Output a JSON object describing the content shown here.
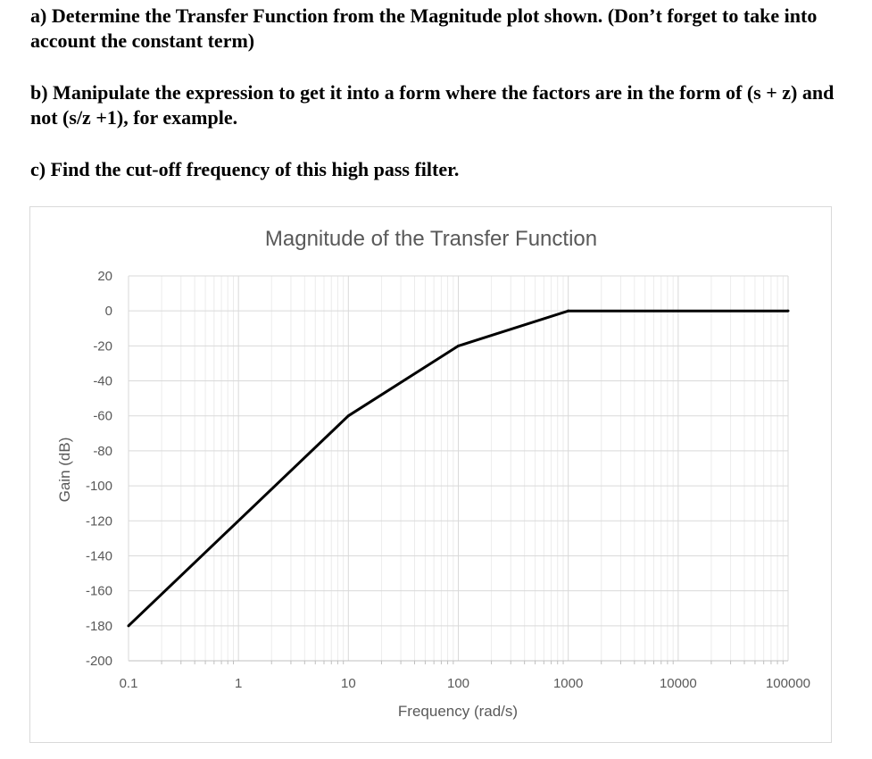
{
  "questions": {
    "a": "a) Determine the Transfer Function from the Magnitude plot shown. (Don’t forget to take into account the constant term)",
    "b": "b) Manipulate the expression to get it into a form where the factors are in the form of (s + z) and not (s/z +1), for example.",
    "c": "c) Find the cut-off frequency of this high pass filter."
  },
  "chart_data": {
    "type": "line",
    "title": "Magnitude of the Transfer Function",
    "xlabel": "Frequency (rad/s)",
    "ylabel": "Gain (dB)",
    "x_scale": "log",
    "xlim": [
      0.1,
      100000
    ],
    "ylim": [
      -200,
      20
    ],
    "x_ticks": [
      "0.1",
      "1",
      "10",
      "100",
      "1000",
      "10000",
      "100000"
    ],
    "y_ticks": [
      "20",
      "0",
      "-20",
      "-40",
      "-60",
      "-80",
      "-100",
      "-120",
      "-140",
      "-160",
      "-180",
      "-200"
    ],
    "grid": true,
    "series": [
      {
        "color": "#000000",
        "x": [
          0.1,
          10,
          100,
          1000,
          100000
        ],
        "y": [
          -180,
          -60,
          -20,
          0,
          0
        ]
      }
    ]
  }
}
